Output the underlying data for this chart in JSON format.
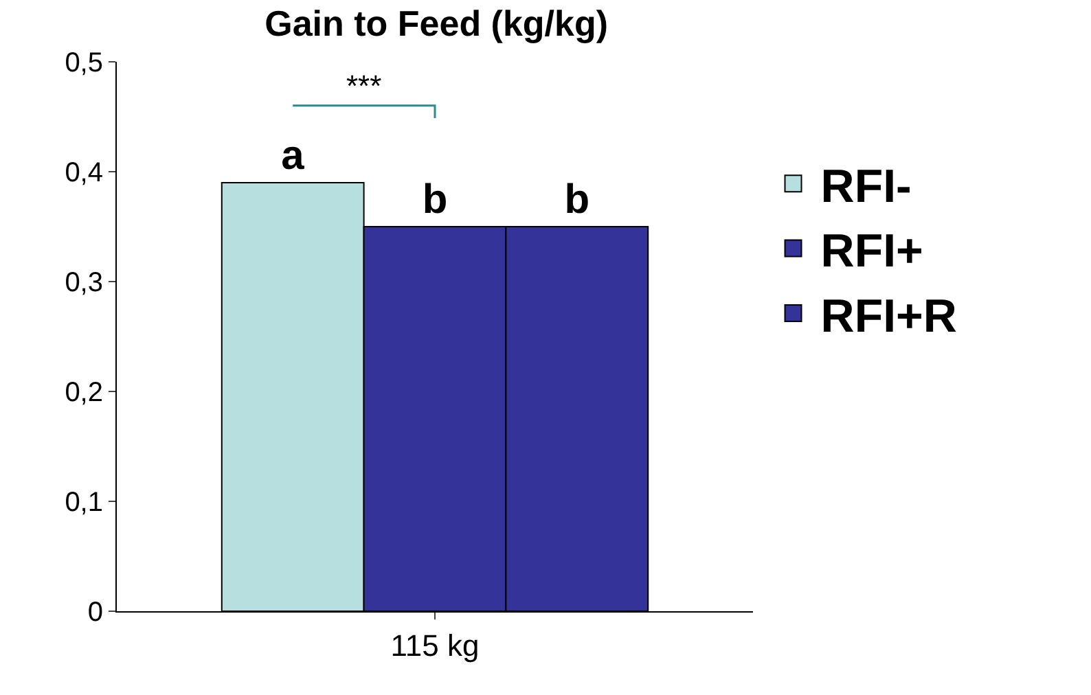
{
  "chart_data": {
    "type": "bar",
    "title": "Gain to Feed (kg/kg)",
    "categories": [
      "115 kg"
    ],
    "series": [
      {
        "name": "RFI-",
        "color": "#b7dfe0",
        "values": [
          0.39
        ],
        "value_labels": [
          "a"
        ]
      },
      {
        "name": "RFI+",
        "color": "#333399",
        "values": [
          0.35
        ],
        "value_labels": [
          "b"
        ]
      },
      {
        "name": "RFI+R",
        "color": "#333399",
        "values": [
          0.35
        ],
        "value_labels": [
          "b"
        ]
      }
    ],
    "ylim": [
      0,
      0.5
    ],
    "yticks": [
      {
        "value": 0,
        "label": "0"
      },
      {
        "value": 0.1,
        "label": "0,1"
      },
      {
        "value": 0.2,
        "label": "0,2"
      },
      {
        "value": 0.3,
        "label": "0,3"
      },
      {
        "value": 0.4,
        "label": "0,4"
      },
      {
        "value": 0.5,
        "label": "0,5"
      }
    ],
    "annotations": [
      "***"
    ],
    "legend": "right"
  }
}
